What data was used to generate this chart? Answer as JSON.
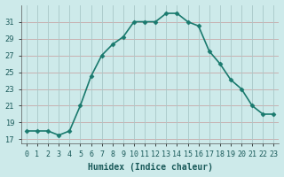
{
  "x": [
    0,
    1,
    2,
    3,
    4,
    5,
    6,
    7,
    8,
    9,
    10,
    11,
    12,
    13,
    14,
    15,
    16,
    17,
    18,
    19,
    20,
    21,
    22,
    23
  ],
  "y": [
    18.0,
    18.0,
    18.0,
    17.5,
    18.0,
    21.0,
    24.5,
    27.0,
    28.3,
    29.2,
    31.0,
    31.0,
    31.0,
    32.0,
    32.0,
    31.0,
    30.5,
    27.5,
    26.0,
    24.1,
    23.0,
    21.0,
    20.0,
    20.0
  ],
  "line_color": "#1a7a6e",
  "marker": "D",
  "marker_size": 2.5,
  "line_width": 1.2,
  "xlabel": "Humidex (Indice chaleur)",
  "xlim": [
    -0.5,
    23.5
  ],
  "ylim": [
    16.5,
    33.0
  ],
  "yticks": [
    17,
    19,
    21,
    23,
    25,
    27,
    29,
    31
  ],
  "xtick_labels": [
    "0",
    "1",
    "2",
    "3",
    "4",
    "5",
    "6",
    "7",
    "8",
    "9",
    "10",
    "11",
    "12",
    "13",
    "14",
    "15",
    "16",
    "17",
    "18",
    "19",
    "20",
    "21",
    "22",
    "23"
  ],
  "bg_color": "#cdeaea",
  "grid_color_h": "#c8a8a8",
  "grid_color_v": "#a8c8c8",
  "label_fontsize": 7,
  "tick_fontsize": 6
}
